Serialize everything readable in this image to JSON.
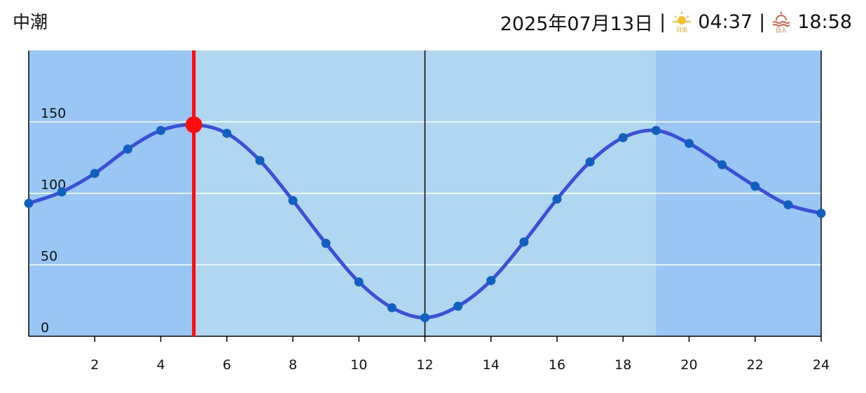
{
  "header": {
    "tide_name": "中潮",
    "date": "2025年07月13日",
    "separator": "|",
    "sunrise_icon_label": "日出",
    "sunrise": "04:37",
    "sunset_icon_label": "日入",
    "sunset": "18:58"
  },
  "chart_data": {
    "type": "line",
    "x": [
      0,
      1,
      2,
      3,
      4,
      5,
      6,
      7,
      8,
      9,
      10,
      11,
      12,
      13,
      14,
      15,
      16,
      17,
      18,
      19,
      20,
      21,
      22,
      23,
      24
    ],
    "values": [
      93,
      101,
      114,
      131,
      144,
      148,
      142,
      123,
      95,
      65,
      38,
      20,
      13,
      21,
      39,
      66,
      96,
      122,
      139,
      144,
      135,
      120,
      105,
      92,
      86
    ],
    "color": "#3c4fd8",
    "point_color": "#1160c0",
    "xlim": [
      0,
      24
    ],
    "xticks": [
      2,
      4,
      6,
      8,
      10,
      12,
      14,
      16,
      18,
      20,
      22,
      24
    ],
    "ylim": [
      0,
      200
    ],
    "yticks": [
      0,
      50,
      100,
      150
    ],
    "grid": true,
    "day_band": [
      5,
      19
    ],
    "night_color": "#99c6f5",
    "day_color": "#b0d7ef",
    "noon_line": 12,
    "current_hour": 5,
    "current_color": "#ff0d0d"
  }
}
